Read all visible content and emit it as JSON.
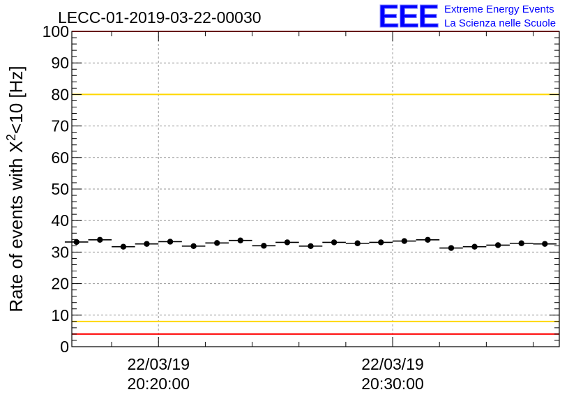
{
  "chart_data": {
    "type": "scatter",
    "title": "LECC-01-2019-03-22-00030",
    "ylabel": {
      "prefix": "Rate of events with X",
      "sup": "2",
      "suffix": "<10 [Hz]"
    },
    "xlabel": "",
    "ylim": [
      0,
      100
    ],
    "yticks": [
      "0",
      "10",
      "20",
      "30",
      "40",
      "50",
      "60",
      "70",
      "80",
      "90",
      "100"
    ],
    "xlim": [
      "20:16:18",
      "20:37:07"
    ],
    "xticks": [
      {
        "time": "20:20:00",
        "date": "22/03/19",
        "clock": "20:20:00"
      },
      {
        "time": "20:30:00",
        "date": "22/03/19",
        "clock": "20:30:00"
      }
    ],
    "grid": true,
    "reference_lines": [
      {
        "y": 100,
        "color": "#ff0000"
      },
      {
        "y": 80,
        "color": "#ffd700"
      },
      {
        "y": 8,
        "color": "#ffd700"
      },
      {
        "y": 4,
        "color": "#ff0000"
      }
    ],
    "bin_width_s": 60,
    "series": [
      {
        "marker_color": "#000000",
        "x": [
          "20:16:30",
          "20:17:30",
          "20:18:30",
          "20:19:30",
          "20:20:30",
          "20:21:30",
          "20:22:30",
          "20:23:30",
          "20:24:30",
          "20:25:30",
          "20:26:30",
          "20:27:30",
          "20:28:30",
          "20:29:30",
          "20:30:30",
          "20:31:30",
          "20:32:30",
          "20:33:30",
          "20:34:30",
          "20:35:30",
          "20:36:30"
        ],
        "y": [
          33.2,
          33.9,
          31.7,
          32.6,
          33.3,
          31.9,
          32.9,
          33.7,
          32.0,
          33.1,
          31.9,
          33.1,
          32.8,
          33.1,
          33.5,
          33.9,
          31.3,
          31.7,
          32.2,
          32.8,
          32.6
        ]
      }
    ]
  },
  "logo": {
    "mark": "EEE",
    "line1": "Extreme Energy Events",
    "line2": "La Scienza nelle Scuole",
    "color": "#0000ff"
  }
}
